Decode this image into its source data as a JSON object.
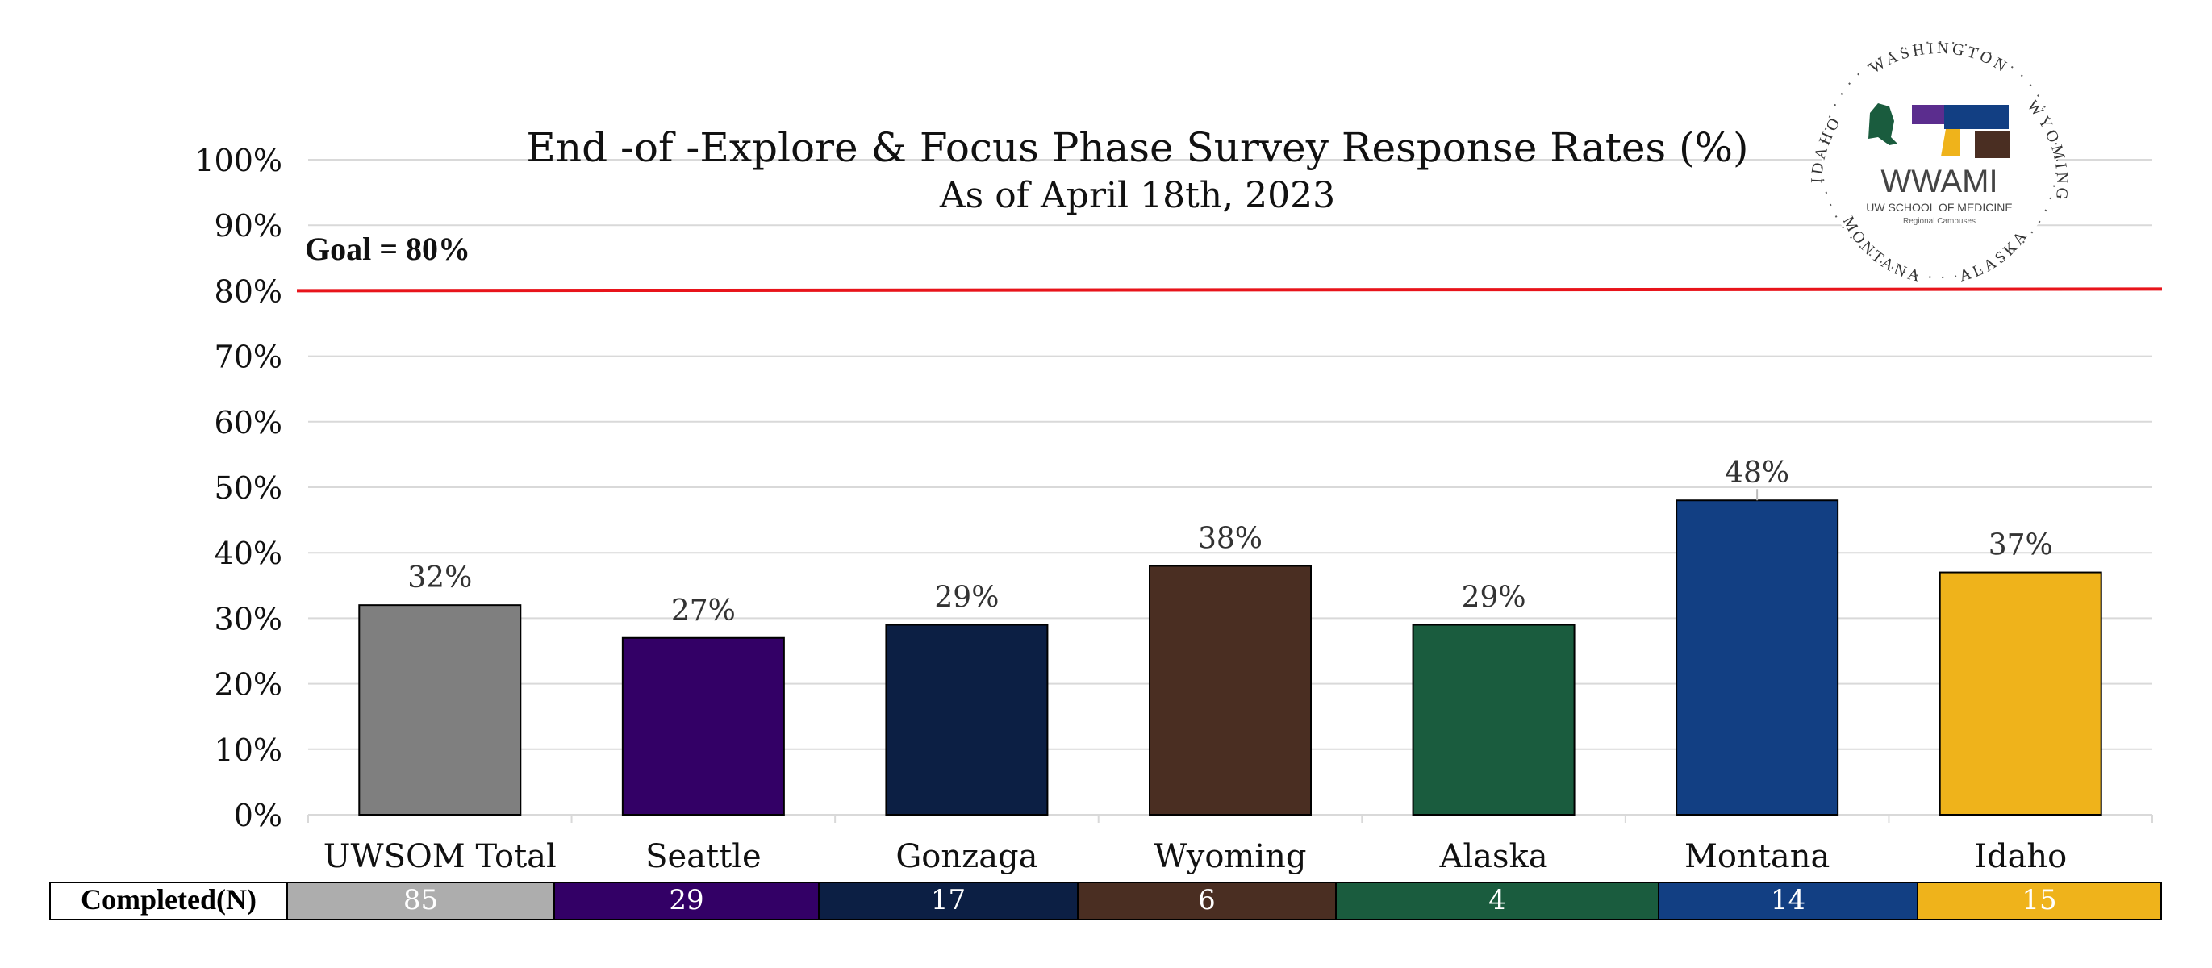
{
  "chart_data": {
    "type": "bar",
    "title": "End -of -Explore & Focus Phase Survey Response Rates (%)",
    "subtitle": "As of April 18th, 2023",
    "categories": [
      "UWSOM Total",
      "Seattle",
      "Gonzaga",
      "Wyoming",
      "Alaska",
      "Montana",
      "Idaho"
    ],
    "values": [
      32,
      27,
      29,
      38,
      29,
      48,
      37
    ],
    "value_labels": [
      "32%",
      "27%",
      "29%",
      "38%",
      "29%",
      "48%",
      "37%"
    ],
    "colors": [
      "#7f7f7f",
      "#330066",
      "#0c1f44",
      "#4a2e22",
      "#1a5c3e",
      "#123f83",
      "#efb31b"
    ],
    "ylim": [
      0,
      100
    ],
    "yticks": [
      0,
      10,
      20,
      30,
      40,
      50,
      60,
      70,
      80,
      90,
      100
    ],
    "ytick_labels": [
      "0%",
      "10%",
      "20%",
      "30%",
      "40%",
      "50%",
      "60%",
      "70%",
      "80%",
      "90%",
      "100%"
    ],
    "grid": true,
    "goal": {
      "value": 80,
      "label": "Goal = 80%",
      "color": "#e8141b"
    }
  },
  "completed_table": {
    "header": "Completed(N)",
    "values": [
      "85",
      "29",
      "17",
      "6",
      "4",
      "14",
      "15"
    ],
    "cell_colors": [
      "#adadad",
      "#330066",
      "#0c1f44",
      "#4a2e22",
      "#1a5c3e",
      "#123f83",
      "#efb31b"
    ]
  },
  "logo": {
    "name": "WWAMI",
    "sub": "UW SCHOOL OF MEDICINE",
    "sub2": "Regional Campuses",
    "ring_text": [
      "WASHINGTON",
      "WYOMING",
      "ALASKA",
      "MONTANA",
      "IDAHO"
    ]
  }
}
